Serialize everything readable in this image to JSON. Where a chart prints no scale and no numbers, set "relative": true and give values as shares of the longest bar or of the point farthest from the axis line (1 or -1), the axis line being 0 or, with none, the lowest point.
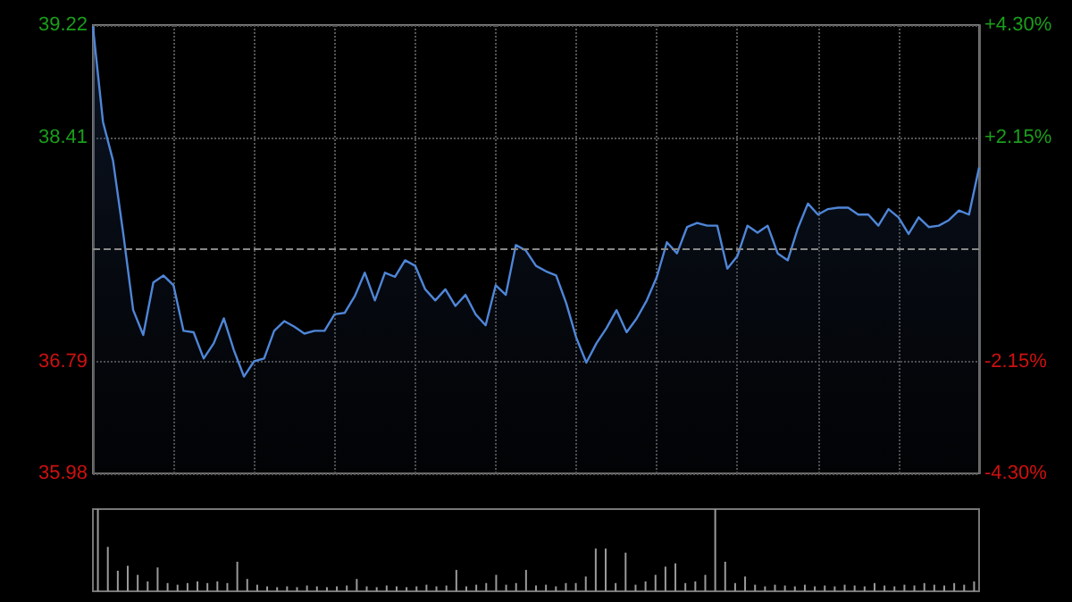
{
  "chart_data": [
    {
      "type": "area",
      "categories": [
        null,
        null,
        null,
        null,
        null,
        null,
        null,
        null,
        null,
        null,
        null,
        null,
        null,
        null,
        null,
        null,
        null,
        null,
        null,
        null,
        null,
        null,
        null,
        null,
        null,
        null,
        null,
        null,
        null,
        null,
        null,
        null,
        null,
        null,
        null,
        null,
        null,
        null,
        null,
        null,
        null,
        null,
        null,
        null,
        null,
        null,
        null,
        null,
        null,
        null,
        null,
        null,
        null,
        null,
        null,
        null,
        null,
        null,
        null,
        null,
        null,
        null,
        null,
        null,
        null,
        null,
        null,
        null,
        null,
        null,
        null,
        null,
        null,
        null,
        null,
        null,
        null,
        null,
        null,
        null,
        null,
        null,
        null,
        null,
        null,
        null,
        null,
        null,
        null
      ],
      "series": [
        {
          "color": "#4f86d8",
          "values": [
            39.21,
            38.52,
            38.24,
            37.72,
            37.16,
            36.98,
            37.36,
            37.41,
            37.34,
            37.01,
            37.0,
            36.81,
            36.92,
            37.1,
            36.87,
            36.68,
            36.79,
            36.81,
            37.01,
            37.08,
            37.04,
            36.99,
            37.01,
            37.01,
            37.13,
            37.14,
            37.26,
            37.43,
            37.23,
            37.43,
            37.4,
            37.52,
            37.48,
            37.31,
            37.23,
            37.31,
            37.19,
            37.27,
            37.13,
            37.05,
            37.34,
            37.27,
            37.63,
            37.59,
            37.48,
            37.44,
            37.41,
            37.21,
            36.96,
            36.78,
            36.92,
            37.03,
            37.16,
            37.0,
            37.1,
            37.23,
            37.4,
            37.65,
            37.57,
            37.76,
            37.79,
            37.77,
            37.77,
            37.46,
            37.55,
            37.77,
            37.72,
            37.77,
            37.57,
            37.52,
            37.75,
            37.93,
            37.85,
            37.89,
            37.9,
            37.9,
            37.85,
            37.85,
            37.77,
            37.89,
            37.83,
            37.71,
            37.83,
            37.76,
            37.77,
            37.81,
            37.88,
            37.85,
            38.19
          ]
        }
      ],
      "ylim": [
        35.98,
        39.22
      ],
      "yticks": [
        35.98,
        36.79,
        38.41,
        39.22
      ],
      "y2lim": [
        -4.3,
        4.3
      ],
      "y2ticks": [
        {
          "value": -4.3,
          "label": "-4.30%"
        },
        {
          "value": -2.15,
          "label": "-2.15%"
        },
        {
          "value": 2.15,
          "label": "+2.15%"
        },
        {
          "value": 4.3,
          "label": "+4.30%"
        }
      ],
      "ref_lines": [
        {
          "axis": "y",
          "value": 37.6,
          "color": "#888888",
          "line_style": "dashed"
        }
      ],
      "grid": true
    },
    {
      "type": "bar",
      "relative": true,
      "color": "#9a9a9a",
      "categories": [
        null,
        null,
        null,
        null,
        null,
        null,
        null,
        null,
        null,
        null,
        null,
        null,
        null,
        null,
        null,
        null,
        null,
        null,
        null,
        null,
        null,
        null,
        null,
        null,
        null,
        null,
        null,
        null,
        null,
        null,
        null,
        null,
        null,
        null,
        null,
        null,
        null,
        null,
        null,
        null,
        null,
        null,
        null,
        null,
        null,
        null,
        null,
        null,
        null,
        null,
        null,
        null,
        null,
        null,
        null,
        null,
        null,
        null,
        null,
        null,
        null,
        null,
        null,
        null,
        null,
        null,
        null,
        null,
        null,
        null,
        null,
        null,
        null,
        null,
        null,
        null,
        null,
        null,
        null,
        null,
        null,
        null,
        null,
        null,
        null,
        null,
        null,
        null,
        null
      ],
      "values": [
        1.0,
        0.54,
        0.25,
        0.31,
        0.2,
        0.12,
        0.29,
        0.1,
        0.08,
        0.1,
        0.12,
        0.1,
        0.12,
        0.1,
        0.36,
        0.15,
        0.08,
        0.06,
        0.05,
        0.06,
        0.05,
        0.07,
        0.06,
        0.05,
        0.06,
        0.07,
        0.15,
        0.06,
        0.05,
        0.07,
        0.06,
        0.05,
        0.06,
        0.08,
        0.06,
        0.07,
        0.26,
        0.06,
        0.08,
        0.1,
        0.2,
        0.08,
        0.1,
        0.26,
        0.07,
        0.08,
        0.06,
        0.1,
        0.1,
        0.18,
        0.52,
        0.52,
        0.1,
        0.47,
        0.08,
        0.12,
        0.2,
        0.3,
        0.34,
        0.1,
        0.12,
        0.2,
        1.0,
        0.36,
        0.1,
        0.18,
        0.08,
        0.06,
        0.08,
        0.07,
        0.06,
        0.08,
        0.06,
        0.07,
        0.06,
        0.08,
        0.07,
        0.06,
        0.1,
        0.07,
        0.06,
        0.08,
        0.07,
        0.1,
        0.08,
        0.07,
        0.1,
        0.08,
        0.12
      ]
    }
  ]
}
